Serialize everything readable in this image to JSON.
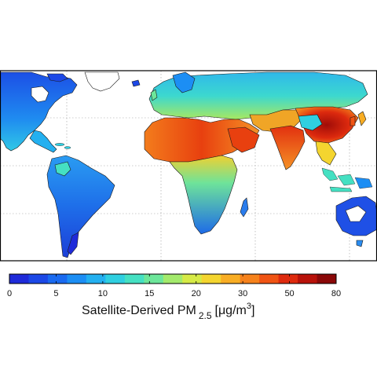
{
  "map": {
    "subject": "satellite-derived fine particulate matter concentration",
    "projection": "equirectangular world map",
    "grid": "dotted graticule",
    "colors": {
      "ocean": "#ffffff",
      "borders": "#1a1a1a",
      "frame": "#000000",
      "ice": "#ffffff"
    }
  },
  "colorbar": {
    "ticks": [
      "0",
      "5",
      "10",
      "15",
      "20",
      "30",
      "50",
      "80"
    ],
    "title_main": "Satellite-Derived PM",
    "title_sub": "2.5",
    "title_unit": "[μg/m",
    "title_sup": "3",
    "title_end": "]",
    "colors": [
      "#1f2bd9",
      "#1c48e6",
      "#1a6af0",
      "#1c8ef4",
      "#23b0f0",
      "#2fcfe0",
      "#45e0c2",
      "#6de69a",
      "#a3ea6c",
      "#d6ea46",
      "#f4d52f",
      "#f8ad24",
      "#f6821c",
      "#f05414",
      "#de2a0e",
      "#b8120a",
      "#8a0808"
    ]
  }
}
